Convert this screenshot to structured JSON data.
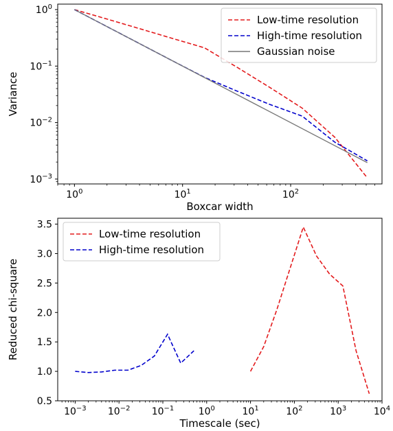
{
  "chart_data": [
    {
      "type": "line",
      "xlabel": "Boxcar width",
      "ylabel": "Variance",
      "xscale": "log",
      "yscale": "log",
      "xlim": [
        0.7,
        700
      ],
      "ylim": [
        0.00082,
        1.25
      ],
      "xticks": [
        1,
        10,
        100
      ],
      "xtick_labels": [
        {
          "base": "10",
          "exp": "0"
        },
        {
          "base": "10",
          "exp": "1"
        },
        {
          "base": "10",
          "exp": "2"
        }
      ],
      "yticks": [
        0.001,
        0.01,
        0.1,
        1
      ],
      "ytick_labels": [
        {
          "base": "10",
          "exp": "−3"
        },
        {
          "base": "10",
          "exp": "−2"
        },
        {
          "base": "10",
          "exp": "−1"
        },
        {
          "base": "10",
          "exp": "0"
        }
      ],
      "grid": false,
      "legend_position": "top-right",
      "series": [
        {
          "name": "Low-time resolution",
          "color": "#e31a1c",
          "dash": "dashed",
          "x": [
            1,
            2,
            4,
            8,
            16,
            32,
            64,
            128,
            256,
            512
          ],
          "y": [
            1.0,
            0.68,
            0.46,
            0.31,
            0.21,
            0.095,
            0.042,
            0.018,
            0.0055,
            0.00105
          ]
        },
        {
          "name": "High-time resolution",
          "color": "#0000cc",
          "dash": "dashed",
          "x": [
            1,
            2,
            4,
            8,
            16,
            32,
            64,
            128,
            256,
            512
          ],
          "y": [
            1.0,
            0.5,
            0.25,
            0.125,
            0.063,
            0.036,
            0.021,
            0.013,
            0.0045,
            0.0021
          ]
        },
        {
          "name": "Gaussian noise",
          "color": "#777777",
          "dash": "solid",
          "x": [
            1,
            512
          ],
          "y": [
            1.0,
            0.00195
          ]
        }
      ]
    },
    {
      "type": "line",
      "xlabel": "Timescale (sec)",
      "ylabel": "Reduced chi-square",
      "xscale": "log",
      "yscale": "linear",
      "xlim": [
        0.0004,
        10000
      ],
      "ylim": [
        0.5,
        3.6
      ],
      "xticks": [
        0.001,
        0.01,
        0.1,
        1,
        10,
        100,
        1000,
        10000
      ],
      "xtick_labels": [
        {
          "base": "10",
          "exp": "−3"
        },
        {
          "base": "10",
          "exp": "−2"
        },
        {
          "base": "10",
          "exp": "−1"
        },
        {
          "base": "10",
          "exp": "0"
        },
        {
          "base": "10",
          "exp": "1"
        },
        {
          "base": "10",
          "exp": "2"
        },
        {
          "base": "10",
          "exp": "3"
        },
        {
          "base": "10",
          "exp": "4"
        }
      ],
      "yticks": [
        0.5,
        1.0,
        1.5,
        2.0,
        2.5,
        3.0,
        3.5
      ],
      "ytick_labels": [
        "0.5",
        "1.0",
        "1.5",
        "2.0",
        "2.5",
        "3.0",
        "3.5"
      ],
      "grid": false,
      "legend_position": "top-left",
      "series": [
        {
          "name": "Low-time resolution",
          "color": "#e31a1c",
          "dash": "dashed",
          "x": [
            10,
            20,
            40,
            80,
            160,
            320,
            640,
            1280,
            2560,
            5120
          ],
          "y": [
            1.0,
            1.42,
            2.05,
            2.75,
            3.45,
            2.96,
            2.65,
            2.45,
            1.35,
            0.62
          ]
        },
        {
          "name": "High-time resolution",
          "color": "#0000cc",
          "dash": "dashed",
          "x": [
            0.001,
            0.002,
            0.004,
            0.008,
            0.016,
            0.032,
            0.064,
            0.128,
            0.256,
            0.512
          ],
          "y": [
            1.0,
            0.98,
            0.99,
            1.02,
            1.02,
            1.1,
            1.26,
            1.63,
            1.14,
            1.35
          ]
        }
      ]
    }
  ]
}
